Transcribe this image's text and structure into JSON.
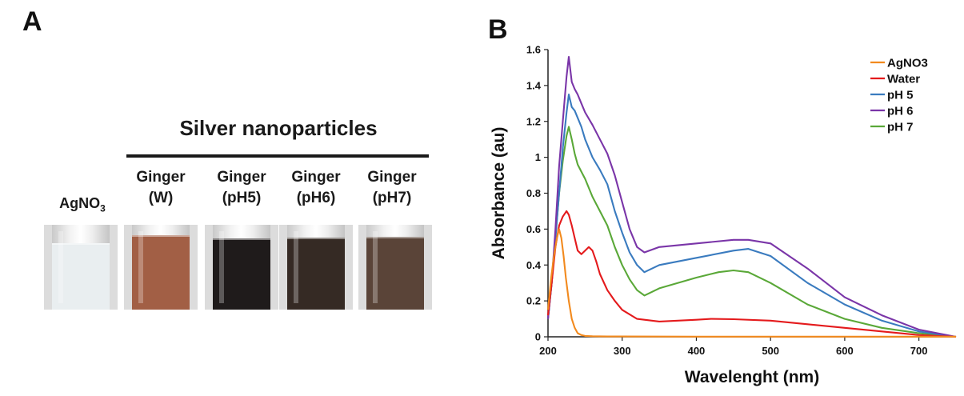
{
  "panel_a": {
    "letter": "A",
    "title": "Silver nanoparticles",
    "agno3_label_base": "AgNO",
    "agno3_label_sub": "3",
    "columns": [
      {
        "line1": "Ginger",
        "line2": "(W)"
      },
      {
        "line1": "Ginger",
        "line2": "(pH5)"
      },
      {
        "line1": "Ginger",
        "line2": "(pH6)"
      },
      {
        "line1": "Ginger",
        "line2": "(pH7)"
      }
    ],
    "vials": [
      {
        "name": "AgNO3",
        "liquid_color": "#e9eef0",
        "fill_level": 0.78
      },
      {
        "name": "Ginger (W)",
        "liquid_color": "#a25f45",
        "fill_level": 0.88
      },
      {
        "name": "Ginger (pH5)",
        "liquid_color": "#1f1b1b",
        "fill_level": 0.84
      },
      {
        "name": "Ginger (pH6)",
        "liquid_color": "#352a24",
        "fill_level": 0.85
      },
      {
        "name": "Ginger (pH7)",
        "liquid_color": "#5a4438",
        "fill_level": 0.86
      }
    ]
  },
  "panel_b": {
    "letter": "B"
  },
  "chart_data": {
    "type": "line",
    "title": "",
    "xlabel": "Wavelenght (nm)",
    "ylabel": "Absorbance (au)",
    "xlim": [
      200,
      750
    ],
    "ylim": [
      0,
      1.6
    ],
    "x_ticks": [
      200,
      300,
      400,
      500,
      600,
      700
    ],
    "y_ticks": [
      0,
      0.2,
      0.4,
      0.6,
      0.8,
      1,
      1.2,
      1.4,
      1.6
    ],
    "y_tick_labels": [
      "0",
      "0.2",
      "0.4",
      "0.6",
      "0.8",
      "1",
      "1.2",
      "1.4",
      "1.6"
    ],
    "grid": false,
    "legend_position": "top-right",
    "series": [
      {
        "name": "AgNO3",
        "color": "#f28a1e",
        "x": [
          200,
          204,
          208,
          212,
          215,
          218,
          221,
          224,
          228,
          232,
          236,
          240,
          245,
          250,
          260,
          280,
          300,
          400,
          500,
          600,
          700,
          750
        ],
        "y": [
          0.15,
          0.32,
          0.45,
          0.55,
          0.6,
          0.55,
          0.45,
          0.33,
          0.2,
          0.1,
          0.05,
          0.02,
          0.01,
          0.005,
          0.003,
          0.002,
          0.002,
          0.001,
          0.001,
          0.001,
          0.001,
          0.001
        ]
      },
      {
        "name": "Water",
        "color": "#e41a1c",
        "x": [
          200,
          205,
          210,
          215,
          220,
          225,
          228,
          232,
          236,
          240,
          245,
          250,
          255,
          260,
          265,
          270,
          280,
          290,
          300,
          320,
          350,
          400,
          420,
          450,
          500,
          550,
          600,
          650,
          700,
          750
        ],
        "y": [
          0.12,
          0.3,
          0.5,
          0.62,
          0.67,
          0.7,
          0.68,
          0.62,
          0.55,
          0.48,
          0.46,
          0.48,
          0.5,
          0.48,
          0.42,
          0.35,
          0.26,
          0.2,
          0.15,
          0.1,
          0.085,
          0.095,
          0.1,
          0.098,
          0.09,
          0.07,
          0.05,
          0.03,
          0.01,
          0.0
        ]
      },
      {
        "name": "pH 5",
        "color": "#3a7bbf",
        "x": [
          200,
          205,
          210,
          215,
          220,
          225,
          228,
          232,
          236,
          240,
          245,
          250,
          260,
          270,
          280,
          290,
          300,
          310,
          320,
          330,
          350,
          400,
          450,
          470,
          500,
          550,
          600,
          650,
          700,
          750
        ],
        "y": [
          0.1,
          0.3,
          0.55,
          0.8,
          1.05,
          1.25,
          1.35,
          1.28,
          1.26,
          1.22,
          1.17,
          1.1,
          1.0,
          0.93,
          0.85,
          0.7,
          0.58,
          0.47,
          0.4,
          0.36,
          0.4,
          0.44,
          0.48,
          0.49,
          0.45,
          0.3,
          0.18,
          0.09,
          0.03,
          0.0
        ]
      },
      {
        "name": "pH 6",
        "color": "#7a35a8",
        "x": [
          200,
          205,
          210,
          215,
          220,
          225,
          228,
          232,
          236,
          240,
          245,
          250,
          260,
          270,
          280,
          290,
          300,
          310,
          320,
          330,
          350,
          400,
          450,
          470,
          500,
          550,
          600,
          650,
          700,
          750
        ],
        "y": [
          0.1,
          0.3,
          0.6,
          0.95,
          1.2,
          1.45,
          1.56,
          1.42,
          1.38,
          1.35,
          1.3,
          1.25,
          1.18,
          1.1,
          1.02,
          0.9,
          0.75,
          0.6,
          0.5,
          0.47,
          0.5,
          0.52,
          0.54,
          0.54,
          0.52,
          0.38,
          0.22,
          0.12,
          0.04,
          0.0
        ]
      },
      {
        "name": "pH 7",
        "color": "#5aa838",
        "x": [
          200,
          205,
          210,
          215,
          220,
          225,
          228,
          232,
          236,
          240,
          245,
          250,
          260,
          270,
          280,
          290,
          300,
          310,
          320,
          330,
          350,
          400,
          430,
          450,
          470,
          500,
          550,
          600,
          650,
          700,
          750
        ],
        "y": [
          0.1,
          0.3,
          0.55,
          0.8,
          0.98,
          1.12,
          1.17,
          1.1,
          1.02,
          0.96,
          0.92,
          0.88,
          0.78,
          0.7,
          0.62,
          0.5,
          0.4,
          0.32,
          0.26,
          0.23,
          0.27,
          0.33,
          0.36,
          0.37,
          0.36,
          0.3,
          0.18,
          0.1,
          0.05,
          0.02,
          0.0
        ]
      }
    ]
  }
}
